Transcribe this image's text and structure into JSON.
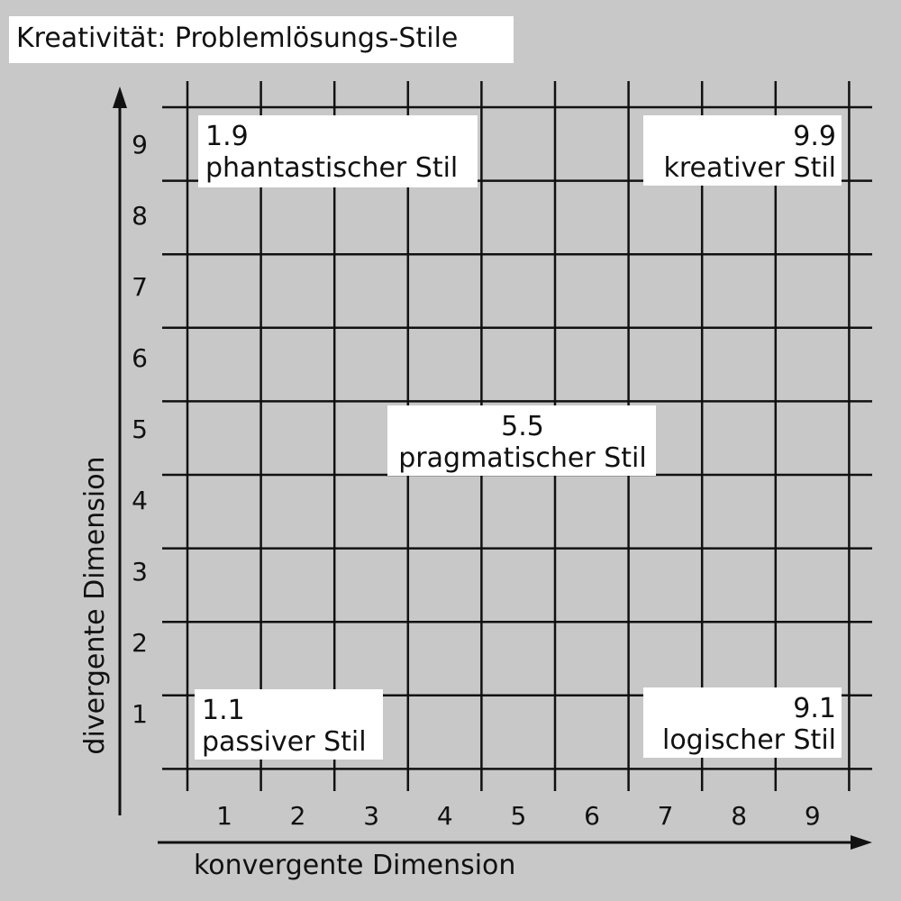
{
  "title": "Kreativität: Problemlösungs-Stile",
  "x_axis_label": "konvergente Dimension",
  "y_axis_label": "divergente Dimension",
  "xticks": [
    1,
    2,
    3,
    4,
    5,
    6,
    7,
    8,
    9
  ],
  "yticks": [
    1,
    2,
    3,
    4,
    5,
    6,
    7,
    8,
    9
  ],
  "styles": [
    {
      "code": "1.9",
      "label": "phantastischer Stil"
    },
    {
      "code": "9.9",
      "label": "kreativer Stil"
    },
    {
      "code": "5.5",
      "label": "pragmatischer Stil"
    },
    {
      "code": "1.1",
      "label": "passiver Stil"
    },
    {
      "code": "9.1",
      "label": "logischer Stil"
    }
  ]
}
